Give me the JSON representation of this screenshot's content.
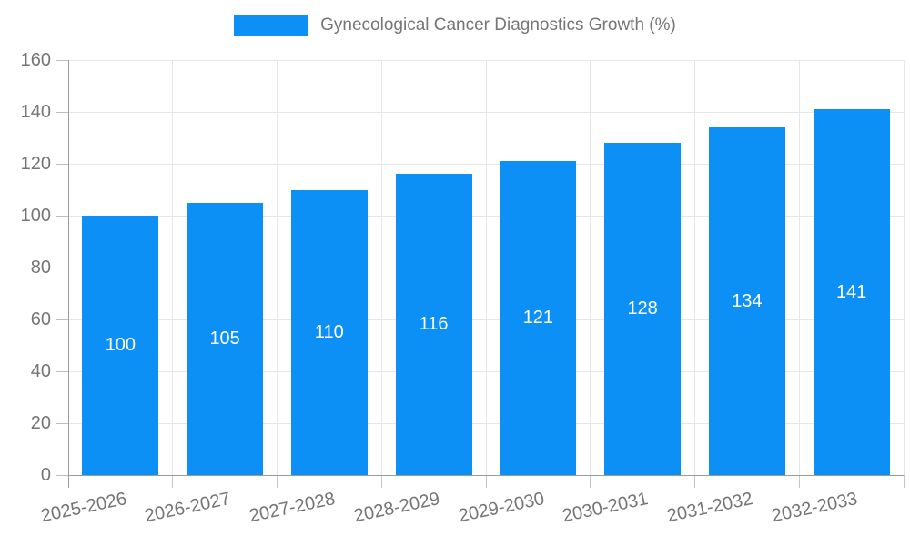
{
  "chart": {
    "legend_label": "Gynecological Cancer Diagnostics Growth (%)"
  },
  "chart_data": {
    "type": "bar",
    "title": "Gynecological Cancer Diagnostics Growth (%)",
    "categories": [
      "2025-2026",
      "2026-2027",
      "2027-2028",
      "2028-2029",
      "2029-2030",
      "2030-2031",
      "2031-2032",
      "2032-2033"
    ],
    "values": [
      100,
      105,
      110,
      116,
      121,
      128,
      134,
      141
    ],
    "xlabel": "",
    "ylabel": "",
    "ylim": [
      0,
      160
    ],
    "ytick_step": 20,
    "yticks": [
      0,
      20,
      40,
      60,
      80,
      100,
      120,
      140,
      160
    ],
    "grid": "horizontal and vertical category boundaries",
    "legend_position": "top-center",
    "value_labels": "centered inside bars",
    "colors": {
      "bar": "#0d90f5",
      "value_label": "#ffffff",
      "axis_line": "#9a9a9a",
      "gridline": "#e6e6e6",
      "tick": "#c6c6c6",
      "text": "#757575",
      "background": "#ffffff"
    }
  }
}
